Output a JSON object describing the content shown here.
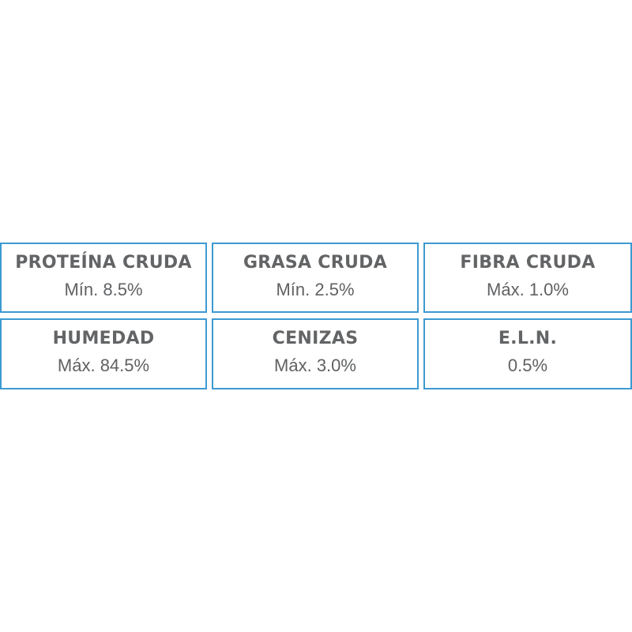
{
  "border_color": "#3d9ad1",
  "text_color": "#606163",
  "nutrients": [
    {
      "label": "PROTEÍNA CRUDA",
      "value": "Mín. 8.5%"
    },
    {
      "label": "GRASA CRUDA",
      "value": "Mín. 2.5%"
    },
    {
      "label": "FIBRA CRUDA",
      "value": "Máx. 1.0%"
    },
    {
      "label": "HUMEDAD",
      "value": "Máx. 84.5%"
    },
    {
      "label": "CENIZAS",
      "value": "Máx. 3.0%"
    },
    {
      "label": "E.L.N.",
      "value": "0.5%"
    }
  ]
}
